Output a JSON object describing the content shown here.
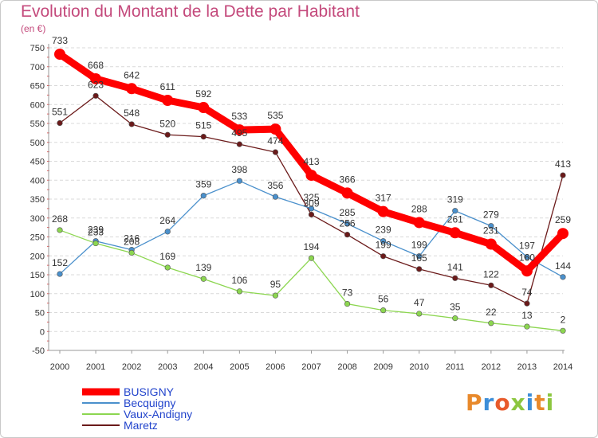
{
  "header": {
    "title": "Evolution du Montant de la Dette par Habitant",
    "unit": "(en €)"
  },
  "logo": {
    "text": "Proxiti",
    "colors": [
      "#e8892b",
      "#3d8ed8",
      "#e85a2b",
      "#8cc63f",
      "#3d8ed8",
      "#e8892b",
      "#8cc63f"
    ]
  },
  "chart_data": {
    "type": "line",
    "title": "Evolution du Montant de la Dette par Habitant",
    "ylabel": "(en €)",
    "xlabel": "",
    "x": [
      "2000",
      "2001",
      "2002",
      "2003",
      "2004",
      "2005",
      "2006",
      "2007",
      "2008",
      "2009",
      "2010",
      "2011",
      "2012",
      "2013",
      "2014"
    ],
    "ylim": [
      -50,
      750
    ],
    "yticks": [
      -50,
      0,
      50,
      100,
      150,
      200,
      250,
      300,
      350,
      400,
      450,
      500,
      550,
      600,
      650,
      700,
      750
    ],
    "grid": true,
    "legend": "bottom-left",
    "series": [
      {
        "name": "BUSIGNY",
        "color": "#ff0000",
        "values": [
          733,
          668,
          642,
          611,
          592,
          533,
          535,
          413,
          366,
          317,
          288,
          261,
          231,
          160,
          259
        ],
        "labels": [
          "733",
          "668",
          "642",
          "611",
          "592",
          "533",
          "535",
          "413",
          "366",
          "317",
          "288",
          "261",
          "231",
          "160",
          "259"
        ]
      },
      {
        "name": "Becquigny",
        "color": "#4a90cc",
        "values": [
          152,
          239,
          216,
          264,
          359,
          398,
          356,
          325,
          285,
          239,
          199,
          319,
          279,
          197,
          144
        ],
        "labels": [
          "152",
          "239",
          "216",
          "264",
          "359",
          "398",
          "356",
          "325",
          "285",
          "239",
          "199",
          "319",
          "279",
          "197",
          "144"
        ]
      },
      {
        "name": "Vaux-Andigny",
        "color": "#8cd650",
        "values": [
          268,
          233,
          208,
          169,
          139,
          106,
          95,
          194,
          73,
          56,
          47,
          35,
          22,
          13,
          2
        ],
        "labels": [
          "268",
          "233",
          "208",
          "169",
          "139",
          "106",
          "95",
          "194",
          "73",
          "56",
          "47",
          "35",
          "22",
          "13",
          "2"
        ]
      },
      {
        "name": "Maretz",
        "color": "#6b1a1a",
        "values": [
          551,
          623,
          548,
          520,
          515,
          495,
          474,
          309,
          256,
          199,
          165,
          141,
          122,
          74,
          413
        ],
        "labels": [
          "551",
          "623",
          "548",
          "520",
          "515",
          "495",
          "474",
          "309",
          "256",
          "199",
          "165",
          "141",
          "122",
          "74",
          "413"
        ]
      }
    ]
  }
}
